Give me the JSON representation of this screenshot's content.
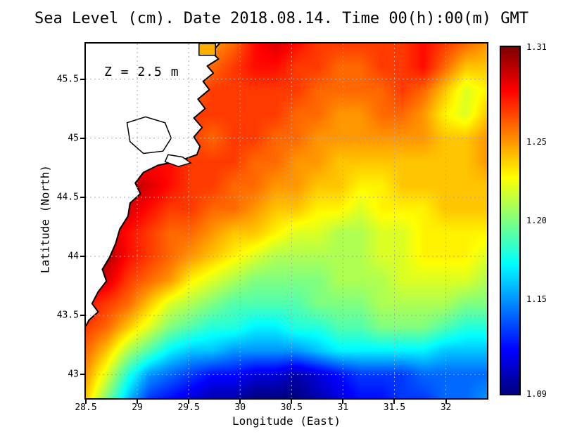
{
  "chart_data": {
    "type": "heatmap",
    "title": "Sea Level (cm). Date 2018.08.14. Time 00(h):00(m) GMT",
    "annotation": "Z = 2.5 m",
    "xlabel": "Longitude (East)",
    "ylabel": "Latitude (North)",
    "xlim": [
      28.5,
      32.4
    ],
    "ylim": [
      42.8,
      45.8
    ],
    "xticks": [
      28.5,
      29,
      29.5,
      30,
      30.5,
      31,
      31.5,
      32
    ],
    "xtick_labels": [
      "28.5",
      "29",
      "29.5",
      "30",
      "30.5",
      "31",
      "31.5",
      "32"
    ],
    "yticks": [
      43,
      43.5,
      44,
      44.5,
      45,
      45.5
    ],
    "ytick_labels": [
      "43",
      "43.5",
      "44",
      "44.5",
      "45",
      "45.5"
    ],
    "grid": "dotted",
    "legend_position": "right-colorbar",
    "colormap": "jet",
    "vmin": 1.09,
    "vmax": 1.31,
    "lon": [
      28.5,
      28.705,
      28.911,
      29.116,
      29.321,
      29.526,
      29.732,
      29.937,
      30.142,
      30.347,
      30.553,
      30.758,
      30.963,
      31.168,
      31.374,
      31.579,
      31.784,
      31.989,
      32.195,
      32.4
    ],
    "lat": [
      45.8,
      45.6,
      45.4,
      45.2,
      45.0,
      44.8,
      44.6,
      44.4,
      44.2,
      44.0,
      43.8,
      43.6,
      43.4,
      43.2,
      43.0,
      42.8
    ],
    "values": [
      [
        1.27,
        1.27,
        1.27,
        1.27,
        1.27,
        1.26,
        1.25,
        1.26,
        1.28,
        1.29,
        1.28,
        1.27,
        1.27,
        1.27,
        1.27,
        1.27,
        1.28,
        1.27,
        1.26,
        1.25
      ],
      [
        1.27,
        1.27,
        1.27,
        1.27,
        1.26,
        1.25,
        1.26,
        1.27,
        1.28,
        1.28,
        1.27,
        1.27,
        1.26,
        1.26,
        1.27,
        1.27,
        1.28,
        1.26,
        1.24,
        1.24
      ],
      [
        1.27,
        1.27,
        1.27,
        1.27,
        1.26,
        1.26,
        1.27,
        1.27,
        1.27,
        1.27,
        1.27,
        1.26,
        1.26,
        1.26,
        1.26,
        1.27,
        1.26,
        1.24,
        1.22,
        1.23
      ],
      [
        1.28,
        1.28,
        1.28,
        1.27,
        1.27,
        1.27,
        1.27,
        1.27,
        1.27,
        1.27,
        1.26,
        1.26,
        1.25,
        1.25,
        1.26,
        1.26,
        1.25,
        1.23,
        1.22,
        1.24
      ],
      [
        1.28,
        1.28,
        1.27,
        1.27,
        1.26,
        1.27,
        1.26,
        1.27,
        1.27,
        1.26,
        1.26,
        1.25,
        1.25,
        1.25,
        1.25,
        1.25,
        1.25,
        1.24,
        1.24,
        1.25
      ],
      [
        1.29,
        1.28,
        1.27,
        1.28,
        1.28,
        1.27,
        1.27,
        1.27,
        1.26,
        1.26,
        1.25,
        1.25,
        1.24,
        1.24,
        1.24,
        1.24,
        1.24,
        1.24,
        1.24,
        1.25
      ],
      [
        1.29,
        1.3,
        1.3,
        1.29,
        1.28,
        1.27,
        1.27,
        1.26,
        1.26,
        1.25,
        1.25,
        1.24,
        1.24,
        1.23,
        1.23,
        1.24,
        1.24,
        1.24,
        1.24,
        1.24
      ],
      [
        1.3,
        1.3,
        1.29,
        1.28,
        1.27,
        1.27,
        1.26,
        1.26,
        1.25,
        1.24,
        1.24,
        1.23,
        1.23,
        1.22,
        1.23,
        1.23,
        1.23,
        1.24,
        1.24,
        1.24
      ],
      [
        1.3,
        1.29,
        1.28,
        1.27,
        1.26,
        1.26,
        1.25,
        1.24,
        1.24,
        1.23,
        1.22,
        1.22,
        1.21,
        1.21,
        1.22,
        1.22,
        1.23,
        1.23,
        1.23,
        1.23
      ],
      [
        1.3,
        1.3,
        1.28,
        1.27,
        1.26,
        1.25,
        1.24,
        1.23,
        1.22,
        1.21,
        1.21,
        1.21,
        1.21,
        1.21,
        1.22,
        1.22,
        1.23,
        1.23,
        1.23,
        1.22
      ],
      [
        1.29,
        1.29,
        1.27,
        1.26,
        1.25,
        1.23,
        1.22,
        1.21,
        1.2,
        1.2,
        1.2,
        1.2,
        1.21,
        1.21,
        1.21,
        1.22,
        1.22,
        1.22,
        1.22,
        1.21
      ],
      [
        1.28,
        1.27,
        1.26,
        1.24,
        1.22,
        1.21,
        1.2,
        1.19,
        1.19,
        1.19,
        1.19,
        1.2,
        1.2,
        1.2,
        1.21,
        1.21,
        1.21,
        1.21,
        1.2,
        1.2
      ],
      [
        1.27,
        1.26,
        1.24,
        1.22,
        1.2,
        1.19,
        1.18,
        1.18,
        1.17,
        1.17,
        1.18,
        1.18,
        1.19,
        1.19,
        1.2,
        1.2,
        1.2,
        1.19,
        1.18,
        1.18
      ],
      [
        1.26,
        1.24,
        1.21,
        1.19,
        1.17,
        1.16,
        1.16,
        1.15,
        1.15,
        1.15,
        1.15,
        1.16,
        1.17,
        1.17,
        1.17,
        1.17,
        1.17,
        1.16,
        1.16,
        1.16
      ],
      [
        1.25,
        1.22,
        1.18,
        1.15,
        1.14,
        1.13,
        1.12,
        1.12,
        1.11,
        1.11,
        1.1,
        1.11,
        1.12,
        1.13,
        1.13,
        1.13,
        1.14,
        1.14,
        1.14,
        1.14
      ],
      [
        1.24,
        1.2,
        1.16,
        1.13,
        1.12,
        1.11,
        1.1,
        1.1,
        1.09,
        1.09,
        1.09,
        1.1,
        1.11,
        1.12,
        1.12,
        1.13,
        1.13,
        1.14,
        1.14,
        1.15
      ]
    ]
  },
  "colorbar": {
    "min": 1.09,
    "max": 1.31,
    "ticks": [
      {
        "value": 1.31,
        "label": "1.31"
      },
      {
        "value": 1.25,
        "label": "1.25"
      },
      {
        "value": 1.2,
        "label": "1.20"
      },
      {
        "value": 1.15,
        "label": "1.15"
      },
      {
        "value": 1.09,
        "label": "1.09"
      }
    ]
  },
  "map": {
    "land_fill": "#ffffff",
    "coast_stroke": "#000000",
    "grid_color": "#aaaaaa",
    "coastline": [
      [
        29.8,
        45.8
      ],
      [
        29.72,
        45.73
      ],
      [
        29.79,
        45.67
      ],
      [
        29.68,
        45.61
      ],
      [
        29.74,
        45.55
      ],
      [
        29.64,
        45.48
      ],
      [
        29.7,
        45.41
      ],
      [
        29.59,
        45.33
      ],
      [
        29.66,
        45.25
      ],
      [
        29.55,
        45.17
      ],
      [
        29.63,
        45.09
      ],
      [
        29.55,
        45.01
      ],
      [
        29.61,
        44.93
      ],
      [
        29.58,
        44.86
      ],
      [
        29.42,
        44.81
      ],
      [
        29.2,
        44.77
      ],
      [
        29.06,
        44.71
      ],
      [
        28.98,
        44.62
      ],
      [
        29.03,
        44.53
      ],
      [
        28.93,
        44.45
      ],
      [
        28.91,
        44.34
      ],
      [
        28.83,
        44.23
      ],
      [
        28.79,
        44.11
      ],
      [
        28.73,
        43.99
      ],
      [
        28.66,
        43.89
      ],
      [
        28.7,
        43.79
      ],
      [
        28.62,
        43.7
      ],
      [
        28.56,
        43.6
      ],
      [
        28.62,
        43.53
      ],
      [
        28.53,
        43.46
      ],
      [
        28.5,
        43.41
      ]
    ],
    "lakes": [
      [
        [
          28.9,
          45.13
        ],
        [
          29.08,
          45.18
        ],
        [
          29.27,
          45.13
        ],
        [
          29.33,
          45.0
        ],
        [
          29.25,
          44.89
        ],
        [
          29.06,
          44.87
        ],
        [
          28.93,
          44.97
        ]
      ],
      [
        [
          29.3,
          44.86
        ],
        [
          29.44,
          44.84
        ],
        [
          29.52,
          44.79
        ],
        [
          29.4,
          44.76
        ],
        [
          29.27,
          44.8
        ]
      ]
    ],
    "inlet": {
      "lon0": 29.6,
      "lon1": 29.76,
      "lat0": 45.7,
      "lat1": 45.8,
      "fill": "#ffae00"
    }
  }
}
